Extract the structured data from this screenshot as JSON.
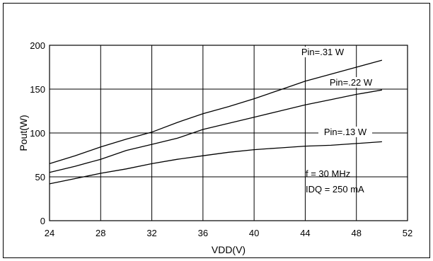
{
  "chart_data": {
    "type": "line",
    "title": "",
    "xlabel": "VDD(V)",
    "ylabel": "Pout(W)",
    "xlim": [
      24,
      52
    ],
    "ylim": [
      0,
      200
    ],
    "xticks": [
      24,
      28,
      32,
      36,
      40,
      44,
      48,
      52
    ],
    "yticks": [
      0,
      50,
      100,
      150,
      200
    ],
    "grid": true,
    "colors": {
      "lines": "#000000",
      "grid": "#000000",
      "background": "#ffffff"
    },
    "series": [
      {
        "name": "Pin=.31 W",
        "x": [
          24,
          26,
          28,
          30,
          32,
          34,
          36,
          38,
          40,
          42,
          44,
          46,
          48,
          50
        ],
        "y": [
          65,
          74,
          84,
          93,
          101,
          112,
          122,
          130,
          139,
          149,
          159,
          167,
          175,
          183
        ]
      },
      {
        "name": "Pin=.22 W",
        "x": [
          24,
          26,
          28,
          30,
          32,
          34,
          36,
          38,
          40,
          42,
          44,
          46,
          48,
          50
        ],
        "y": [
          55,
          62,
          70,
          80,
          87,
          94,
          104,
          111,
          118,
          125,
          132,
          138,
          144,
          149
        ]
      },
      {
        "name": "Pin=.13 W",
        "x": [
          24,
          26,
          28,
          30,
          32,
          34,
          36,
          38,
          40,
          42,
          44,
          46,
          48,
          50
        ],
        "y": [
          42,
          48,
          54,
          59,
          65,
          70,
          74,
          78,
          81,
          83,
          85,
          86,
          88,
          90
        ]
      }
    ],
    "annotations": [
      "f = 30 MHz",
      "IDQ = 250 mA"
    ]
  }
}
